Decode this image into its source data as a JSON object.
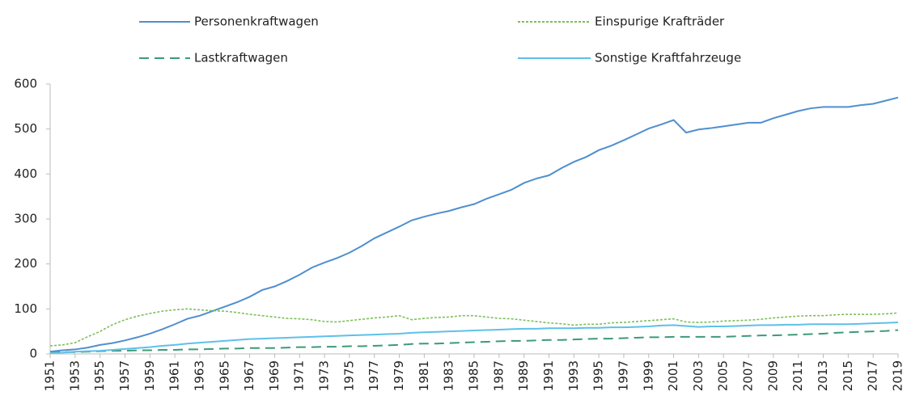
{
  "chart_data": {
    "type": "line",
    "x": [
      1951,
      1952,
      1953,
      1954,
      1955,
      1956,
      1957,
      1958,
      1959,
      1960,
      1961,
      1962,
      1963,
      1964,
      1965,
      1966,
      1967,
      1968,
      1969,
      1970,
      1971,
      1972,
      1973,
      1974,
      1975,
      1976,
      1977,
      1978,
      1979,
      1980,
      1981,
      1982,
      1983,
      1984,
      1985,
      1986,
      1987,
      1988,
      1989,
      1990,
      1991,
      1992,
      1993,
      1994,
      1995,
      1996,
      1997,
      1998,
      1999,
      2000,
      2001,
      2002,
      2003,
      2004,
      2005,
      2006,
      2007,
      2008,
      2009,
      2010,
      2011,
      2012,
      2013,
      2014,
      2015,
      2016,
      2017,
      2018,
      2019
    ],
    "xlim": [
      1951,
      2019
    ],
    "xticks": [
      1951,
      1953,
      1955,
      1957,
      1959,
      1961,
      1963,
      1965,
      1967,
      1969,
      1971,
      1973,
      1975,
      1977,
      1979,
      1981,
      1983,
      1985,
      1987,
      1989,
      1991,
      1993,
      1995,
      1997,
      1999,
      2001,
      2003,
      2005,
      2007,
      2009,
      2011,
      2013,
      2015,
      2017,
      2019
    ],
    "ylim": [
      0,
      600
    ],
    "yticks": [
      0,
      100,
      200,
      300,
      400,
      500,
      600
    ],
    "series": [
      {
        "name": "Personenkraftwagen",
        "color": "#4f8fcf",
        "dash": "solid",
        "values": [
          5,
          8,
          10,
          14,
          20,
          24,
          30,
          37,
          45,
          55,
          66,
          78,
          85,
          95,
          105,
          115,
          127,
          142,
          150,
          162,
          176,
          192,
          203,
          213,
          225,
          240,
          257,
          270,
          283,
          297,
          305,
          312,
          318,
          326,
          333,
          345,
          355,
          365,
          380,
          390,
          397,
          413,
          427,
          438,
          453,
          463,
          475,
          488,
          501,
          510,
          520,
          492,
          499,
          502,
          506,
          510,
          514,
          514,
          524,
          532,
          540,
          546,
          549,
          549,
          549,
          553,
          556,
          563,
          570
        ]
      },
      {
        "name": "Einspurige Krafträder",
        "color": "#7dbf5a",
        "dash": "dotted",
        "values": [
          18,
          20,
          25,
          38,
          50,
          65,
          76,
          84,
          90,
          95,
          98,
          100,
          98,
          96,
          95,
          92,
          88,
          85,
          82,
          79,
          78,
          76,
          72,
          71,
          74,
          77,
          80,
          82,
          85,
          76,
          79,
          81,
          82,
          85,
          85,
          82,
          79,
          78,
          75,
          72,
          69,
          67,
          64,
          66,
          66,
          69,
          70,
          72,
          74,
          76,
          78,
          71,
          70,
          71,
          73,
          74,
          75,
          77,
          80,
          82,
          84,
          85,
          85,
          87,
          88,
          88,
          88,
          89,
          91
        ]
      },
      {
        "name": "Lastkraftwagen",
        "color": "#3d9a78",
        "dash": "dashed",
        "values": [
          3,
          4,
          4,
          5,
          6,
          7,
          7,
          8,
          8,
          9,
          9,
          10,
          10,
          11,
          12,
          12,
          13,
          13,
          13,
          14,
          15,
          15,
          16,
          16,
          17,
          17,
          18,
          19,
          20,
          22,
          23,
          23,
          24,
          25,
          26,
          27,
          28,
          29,
          29,
          30,
          31,
          31,
          32,
          33,
          34,
          34,
          35,
          36,
          37,
          37,
          38,
          38,
          38,
          38,
          38,
          39,
          40,
          41,
          41,
          42,
          43,
          44,
          45,
          47,
          48,
          49,
          50,
          51,
          53
        ]
      },
      {
        "name": "Sonstige Kraftfahrzeuge",
        "color": "#5ec0e8",
        "dash": "solid",
        "values": [
          2,
          3,
          5,
          6,
          7,
          9,
          11,
          13,
          15,
          18,
          20,
          23,
          25,
          27,
          29,
          31,
          33,
          34,
          35,
          36,
          37,
          38,
          39,
          40,
          41,
          42,
          43,
          44,
          45,
          47,
          48,
          49,
          50,
          51,
          52,
          53,
          54,
          55,
          56,
          56,
          57,
          57,
          57,
          58,
          58,
          59,
          59,
          60,
          61,
          63,
          64,
          62,
          60,
          61,
          61,
          62,
          63,
          64,
          64,
          65,
          65,
          66,
          66,
          66,
          66,
          67,
          68,
          69,
          70
        ]
      }
    ]
  }
}
